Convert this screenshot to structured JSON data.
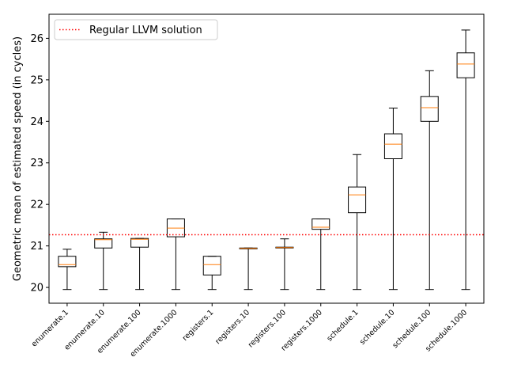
{
  "chart_data": {
    "type": "box",
    "title": "",
    "xlabel": "",
    "ylabel": "Geometric mean of estimated speed (in cycles)",
    "ylim": [
      19.62,
      26.58
    ],
    "yticks": [
      20,
      21,
      22,
      23,
      24,
      25,
      26
    ],
    "grid": false,
    "legend_position": "top-left",
    "categories": [
      "enumerate.1",
      "enumerate.10",
      "enumerate.100",
      "enumerate.1000",
      "registers.1",
      "registers.10",
      "registers.100",
      "registers.1000",
      "schedule.1",
      "schedule.10",
      "schedule.100",
      "schedule.1000"
    ],
    "boxes": [
      {
        "whisker_low": 19.95,
        "q1": 20.5,
        "median": 20.55,
        "q3": 20.75,
        "whisker_high": 20.92
      },
      {
        "whisker_low": 19.95,
        "q1": 20.95,
        "median": 21.15,
        "q3": 21.17,
        "whisker_high": 21.33
      },
      {
        "whisker_low": 19.95,
        "q1": 20.97,
        "median": 21.16,
        "q3": 21.18,
        "whisker_high": 21.18
      },
      {
        "whisker_low": 19.95,
        "q1": 21.22,
        "median": 21.43,
        "q3": 21.65,
        "whisker_high": 21.65
      },
      {
        "whisker_low": 19.95,
        "q1": 20.3,
        "median": 20.55,
        "q3": 20.75,
        "whisker_high": 20.75
      },
      {
        "whisker_low": 19.95,
        "q1": 20.93,
        "median": 20.94,
        "q3": 20.95,
        "whisker_high": 20.95
      },
      {
        "whisker_low": 19.95,
        "q1": 20.95,
        "median": 20.96,
        "q3": 20.97,
        "whisker_high": 21.17
      },
      {
        "whisker_low": 19.95,
        "q1": 21.4,
        "median": 21.45,
        "q3": 21.65,
        "whisker_high": 21.65
      },
      {
        "whisker_low": 19.95,
        "q1": 21.8,
        "median": 22.23,
        "q3": 22.42,
        "whisker_high": 23.2
      },
      {
        "whisker_low": 19.95,
        "q1": 23.1,
        "median": 23.45,
        "q3": 23.7,
        "whisker_high": 24.32
      },
      {
        "whisker_low": 19.95,
        "q1": 24.0,
        "median": 24.33,
        "q3": 24.6,
        "whisker_high": 25.22
      },
      {
        "whisker_low": 19.95,
        "q1": 25.05,
        "median": 25.38,
        "q3": 25.65,
        "whisker_high": 26.2
      }
    ],
    "reference_line": {
      "label": "Regular LLVM solution",
      "value": 21.27,
      "color": "#ff0000",
      "style": "dotted"
    },
    "colors": {
      "box": "#000000",
      "median": "#ff7f0e"
    }
  }
}
